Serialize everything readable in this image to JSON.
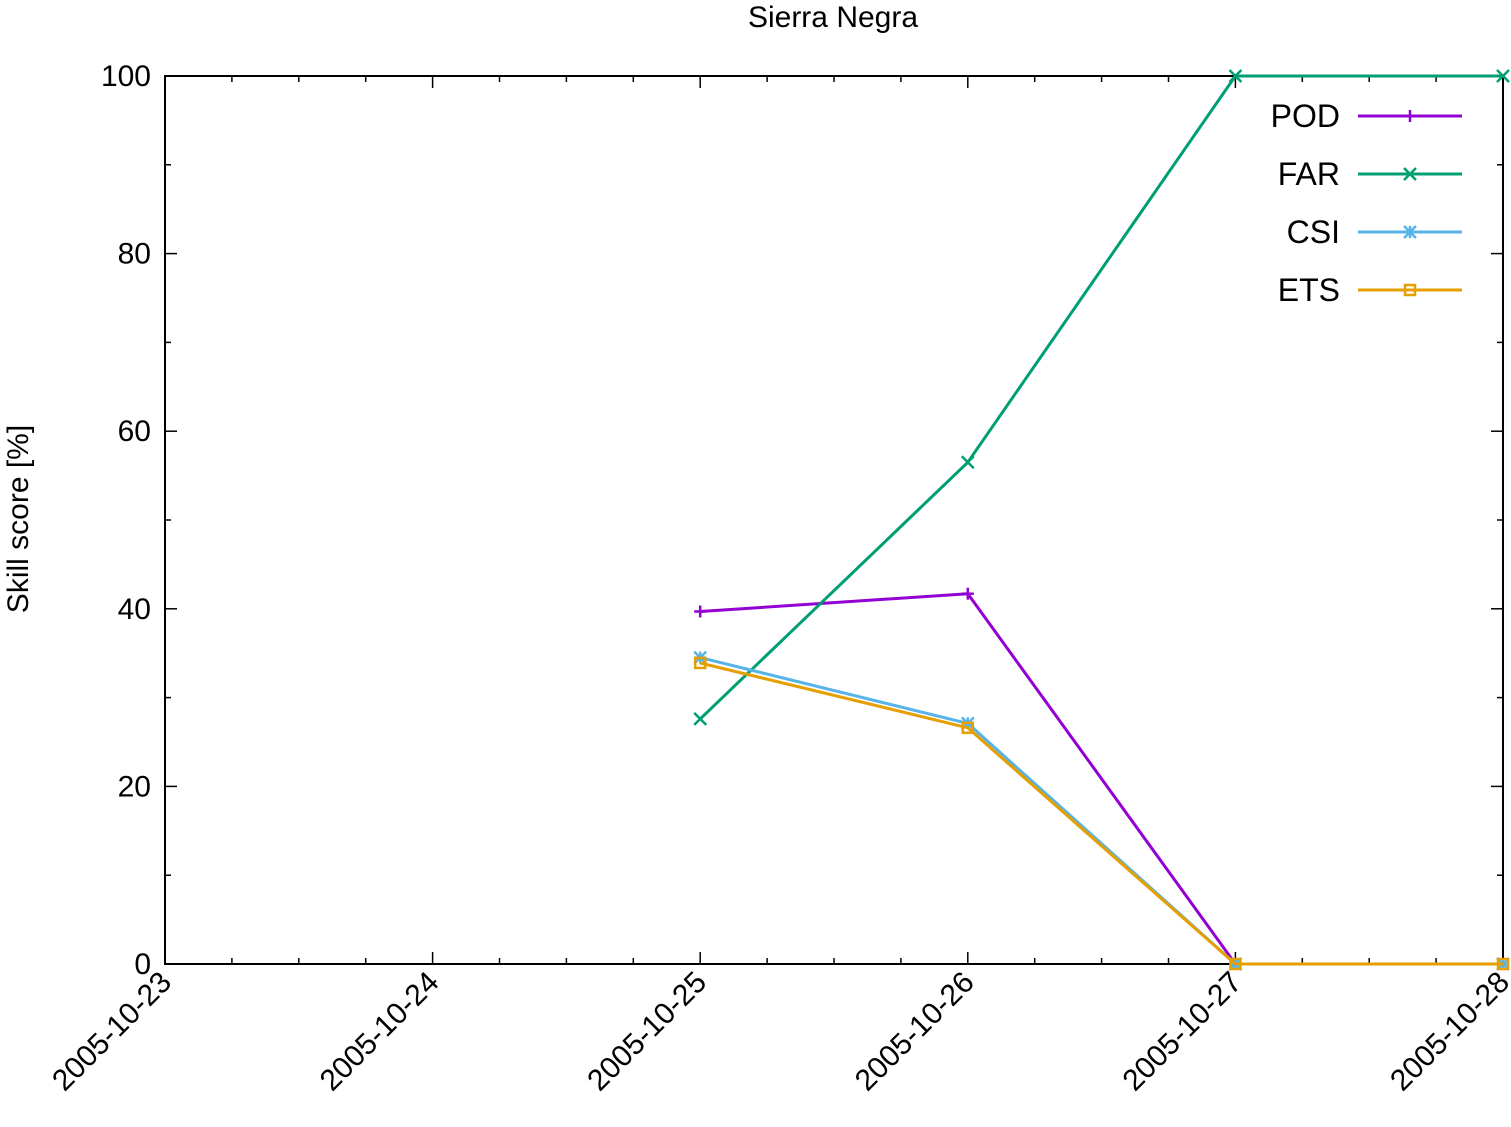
{
  "chart_data": {
    "type": "line",
    "title": "Sierra Negra",
    "xlabel": "",
    "ylabel": "Skill score [%]",
    "x_ticks": [
      "2005-10-23",
      "2005-10-24",
      "2005-10-25",
      "2005-10-26",
      "2005-10-27",
      "2005-10-28"
    ],
    "xlim": [
      "2005-10-23",
      "2005-10-28"
    ],
    "y_ticks": [
      0,
      20,
      40,
      60,
      80,
      100
    ],
    "ylim": [
      0,
      100
    ],
    "grid": false,
    "legend_position": "top-right",
    "series": [
      {
        "name": "POD",
        "color": "#9400d3",
        "marker": "plus",
        "x": [
          "2005-10-25",
          "2005-10-26",
          "2005-10-27"
        ],
        "y": [
          39.7,
          41.7,
          0
        ]
      },
      {
        "name": "FAR",
        "color": "#009e73",
        "marker": "cross",
        "x": [
          "2005-10-25",
          "2005-10-26",
          "2005-10-27",
          "2005-10-28"
        ],
        "y": [
          27.6,
          56.5,
          100,
          100
        ]
      },
      {
        "name": "CSI",
        "color": "#56b4e9",
        "marker": "star",
        "x": [
          "2005-10-25",
          "2005-10-26",
          "2005-10-27",
          "2005-10-28"
        ],
        "y": [
          34.5,
          27.1,
          0,
          0
        ]
      },
      {
        "name": "ETS",
        "color": "#e69f00",
        "marker": "square",
        "x": [
          "2005-10-25",
          "2005-10-26",
          "2005-10-27",
          "2005-10-28"
        ],
        "y": [
          33.9,
          26.6,
          0,
          0
        ]
      }
    ]
  }
}
